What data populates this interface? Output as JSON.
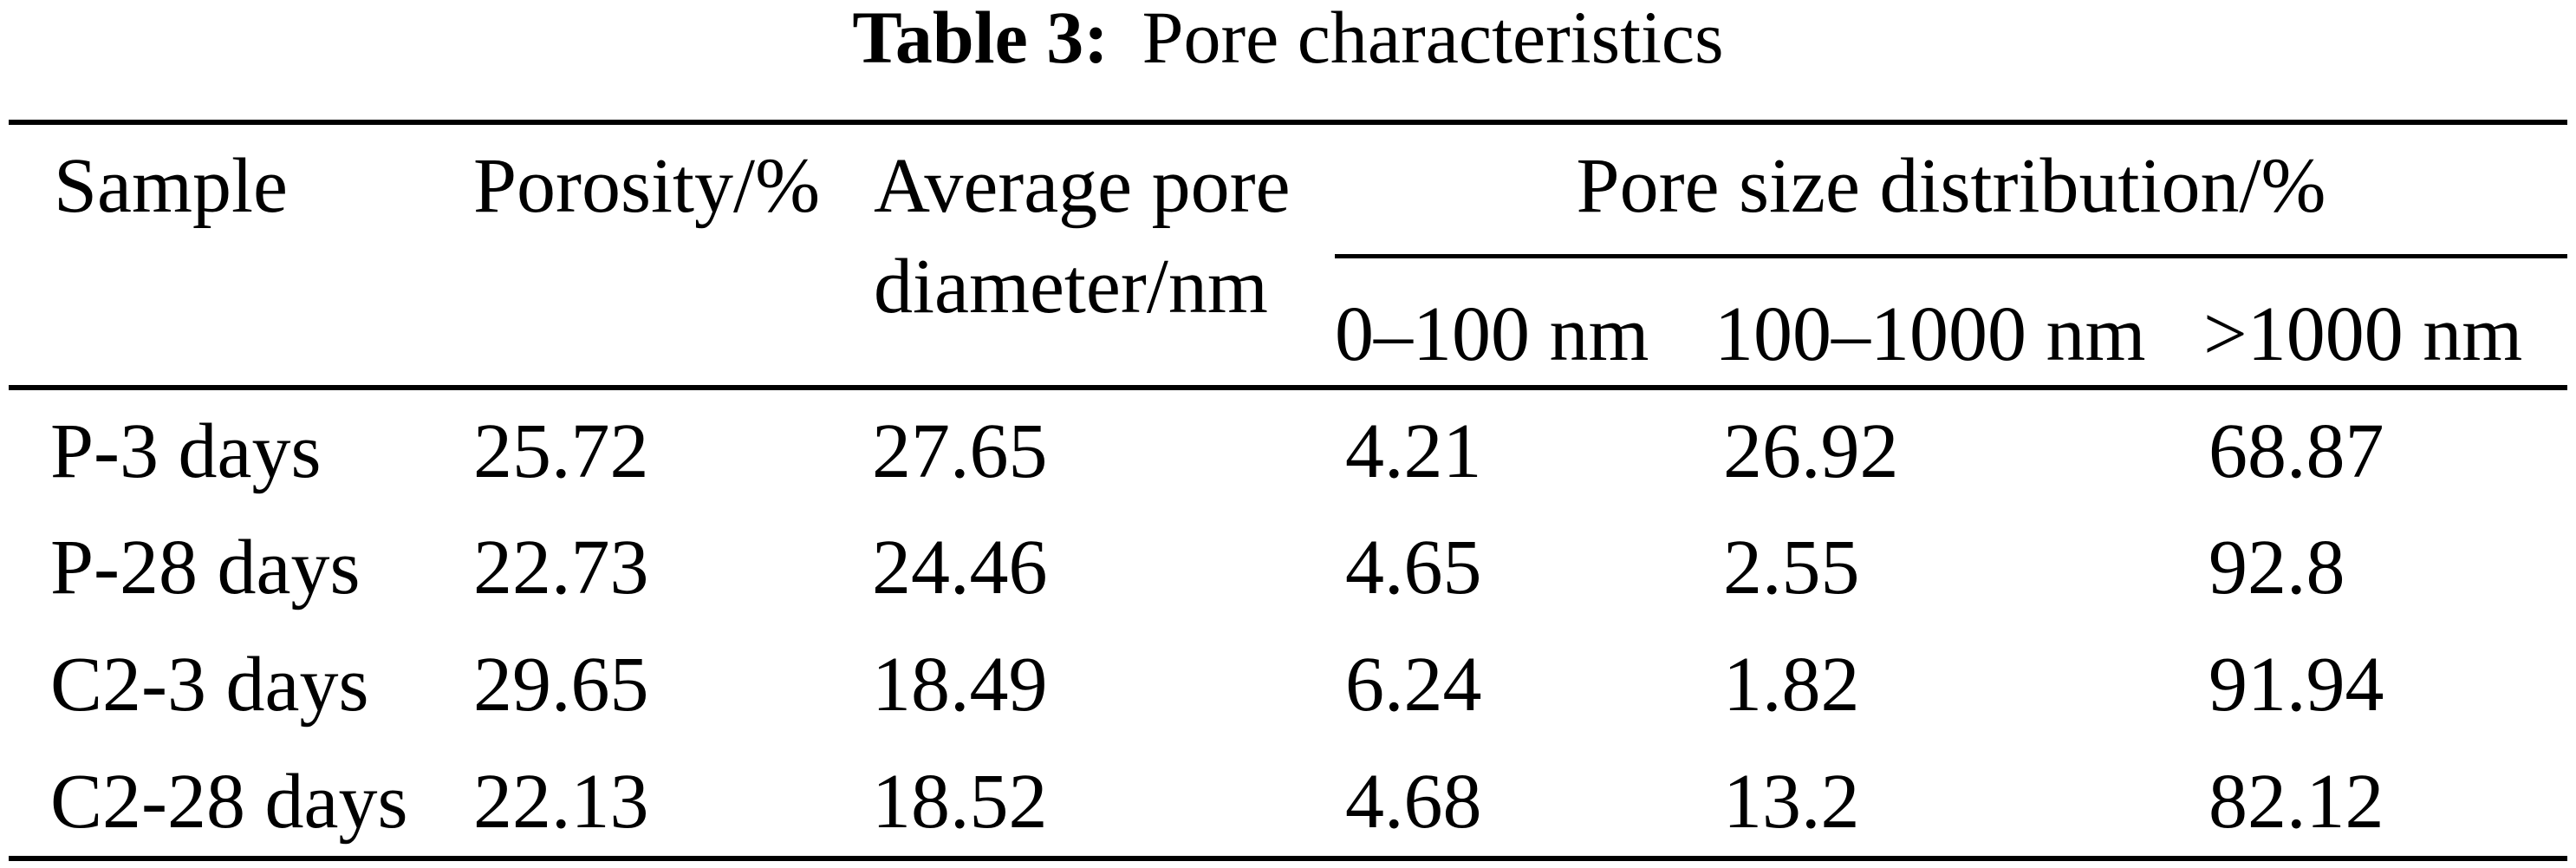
{
  "title": {
    "label": "Table 3:",
    "text": "Pore characteristics"
  },
  "table": {
    "header": {
      "sample": "Sample",
      "porosity": "Porosity/%",
      "avg_pore_line1": "Average pore",
      "avg_pore_line2": "diameter/nm",
      "pore_size_distribution": "Pore size distribution/%",
      "sub_columns": [
        "0–100 nm",
        "100–1000 nm",
        ">1000 nm"
      ]
    },
    "rows": [
      {
        "cells": [
          "P-3 days",
          "25.72",
          "27.65",
          "4.21",
          "26.92",
          "68.87"
        ]
      },
      {
        "cells": [
          "P-28 days",
          "22.73",
          "24.46",
          "4.65",
          "2.55",
          "92.8"
        ]
      },
      {
        "cells": [
          "C2-3 days",
          "29.65",
          "18.49",
          "6.24",
          "1.82",
          "91.94"
        ]
      },
      {
        "cells": [
          "C2-28 days",
          "22.13",
          "18.52",
          "4.68",
          "13.2",
          "82.12"
        ]
      }
    ]
  },
  "colors": {
    "text": "#000000",
    "background": "#ffffff",
    "rule": "#000000"
  },
  "chart_data": {
    "type": "table",
    "title": "Table 3: Pore characteristics",
    "columns": [
      "Sample",
      "Porosity/%",
      "Average pore diameter/nm",
      "0–100 nm (Pore size distribution/%)",
      "100–1000 nm (Pore size distribution/%)",
      ">1000 nm (Pore size distribution/%)"
    ],
    "rows": [
      [
        "P-3 days",
        25.72,
        27.65,
        4.21,
        26.92,
        68.87
      ],
      [
        "P-28 days",
        22.73,
        24.46,
        4.65,
        2.55,
        92.8
      ],
      [
        "C2-3 days",
        29.65,
        18.49,
        6.24,
        1.82,
        91.94
      ],
      [
        "C2-28 days",
        22.13,
        18.52,
        4.68,
        13.2,
        82.12
      ]
    ]
  }
}
